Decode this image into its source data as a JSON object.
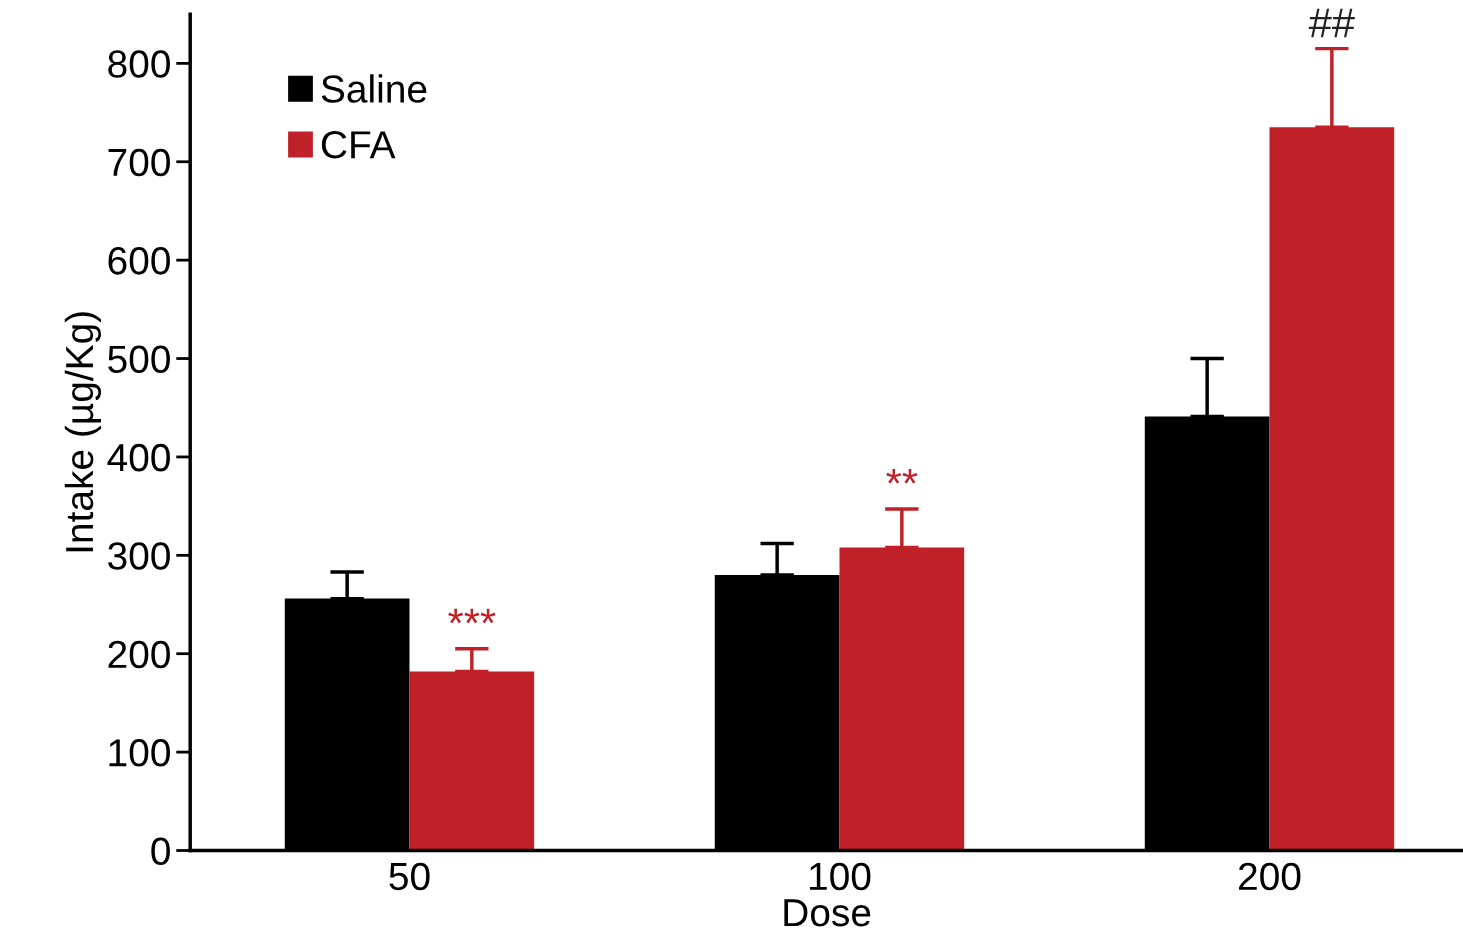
{
  "chart_data": {
    "type": "bar",
    "xlabel": "Dose",
    "ylabel": "Intake (µg/Kg)",
    "categories": [
      "50",
      "100",
      "200"
    ],
    "series": [
      {
        "name": "Saline",
        "color": "#000000",
        "values": [
          256,
          280,
          441
        ],
        "errors": [
          [
            256,
            283
          ],
          [
            280,
            312
          ],
          [
            441,
            500
          ]
        ]
      },
      {
        "name": "CFA",
        "color": "#c02028",
        "values": [
          182,
          308,
          735
        ],
        "errors": [
          [
            182,
            205
          ],
          [
            308,
            347
          ],
          [
            735,
            815
          ]
        ]
      }
    ],
    "ylim": [
      0,
      850
    ],
    "yticks": [
      0,
      100,
      200,
      300,
      400,
      500,
      600,
      700,
      800
    ],
    "annotations": [
      "***",
      "**",
      "##"
    ],
    "legend": "top left",
    "grid": false
  }
}
